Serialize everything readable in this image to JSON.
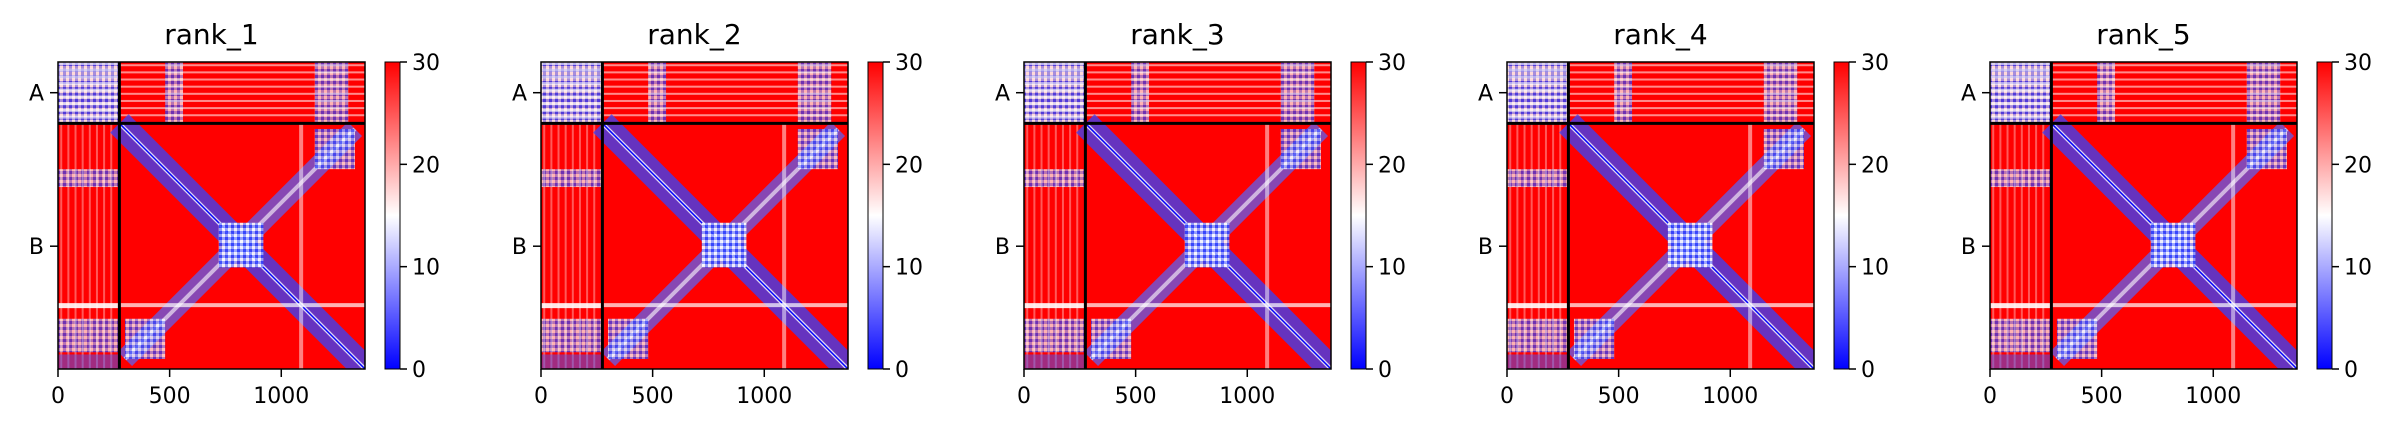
{
  "chart_data": [
    {
      "type": "heatmap",
      "title": "rank_1",
      "xlabel": "",
      "ylabel": "",
      "x_ticks": [
        0,
        500,
        1000
      ],
      "xlim": [
        0,
        1375
      ],
      "chains": [
        {
          "label": "A",
          "start": 0,
          "end": 275
        },
        {
          "label": "B",
          "start": 275,
          "end": 1375
        }
      ],
      "colorbar": {
        "ticks": [
          0,
          10,
          20,
          30
        ],
        "range": [
          0,
          30
        ],
        "colormap": "bwr"
      }
    },
    {
      "type": "heatmap",
      "title": "rank_2",
      "xlabel": "",
      "ylabel": "",
      "x_ticks": [
        0,
        500,
        1000
      ],
      "xlim": [
        0,
        1375
      ],
      "chains": [
        {
          "label": "A",
          "start": 0,
          "end": 275
        },
        {
          "label": "B",
          "start": 275,
          "end": 1375
        }
      ],
      "colorbar": {
        "ticks": [
          0,
          10,
          20,
          30
        ],
        "range": [
          0,
          30
        ],
        "colormap": "bwr"
      }
    },
    {
      "type": "heatmap",
      "title": "rank_3",
      "xlabel": "",
      "ylabel": "",
      "x_ticks": [
        0,
        500,
        1000
      ],
      "xlim": [
        0,
        1375
      ],
      "chains": [
        {
          "label": "A",
          "start": 0,
          "end": 275
        },
        {
          "label": "B",
          "start": 275,
          "end": 1375
        }
      ],
      "colorbar": {
        "ticks": [
          0,
          10,
          20,
          30
        ],
        "range": [
          0,
          30
        ],
        "colormap": "bwr"
      }
    },
    {
      "type": "heatmap",
      "title": "rank_4",
      "xlabel": "",
      "ylabel": "",
      "x_ticks": [
        0,
        500,
        1000
      ],
      "xlim": [
        0,
        1375
      ],
      "chains": [
        {
          "label": "A",
          "start": 0,
          "end": 275
        },
        {
          "label": "B",
          "start": 275,
          "end": 1375
        }
      ],
      "colorbar": {
        "ticks": [
          0,
          10,
          20,
          30
        ],
        "range": [
          0,
          30
        ],
        "colormap": "bwr"
      }
    },
    {
      "type": "heatmap",
      "title": "rank_5",
      "xlabel": "",
      "ylabel": "",
      "x_ticks": [
        0,
        500,
        1000
      ],
      "xlim": [
        0,
        1375
      ],
      "chains": [
        {
          "label": "A",
          "start": 0,
          "end": 275
        },
        {
          "label": "B",
          "start": 275,
          "end": 1375
        }
      ],
      "colorbar": {
        "ticks": [
          0,
          10,
          20,
          30
        ],
        "range": [
          0,
          30
        ],
        "colormap": "bwr"
      }
    }
  ],
  "colors": {
    "low": "#0000ff",
    "mid": "#ffffff",
    "high": "#ff0000",
    "divider": "#000000"
  }
}
